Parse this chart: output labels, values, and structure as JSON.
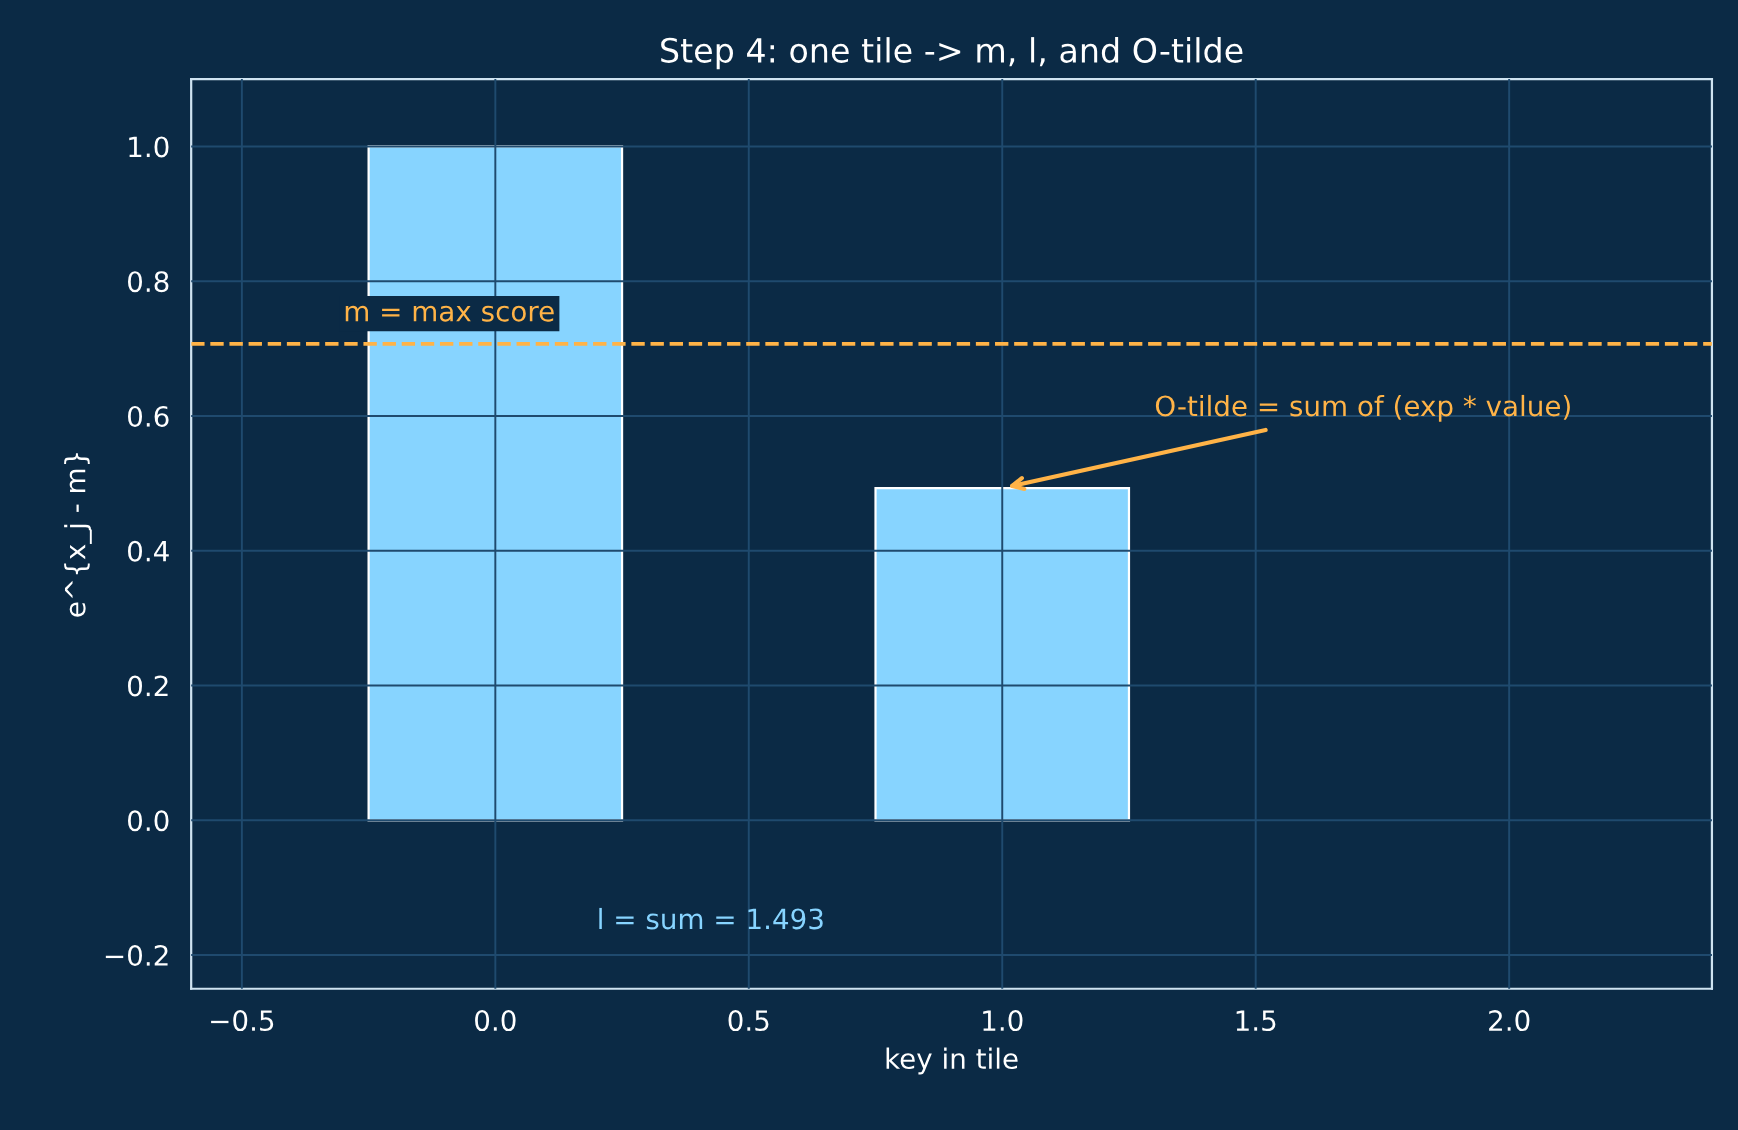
{
  "chart_data": {
    "type": "bar",
    "title": "Step 4: one tile -> m, l, and O-tilde",
    "xlabel": "key in tile",
    "ylabel": "e^{x_j - m}",
    "x": [
      0,
      1
    ],
    "values": [
      1.0,
      0.493
    ],
    "color": "#87d4ff",
    "xlim": [
      -0.6,
      2.4
    ],
    "ylim": [
      -0.25,
      1.1
    ],
    "xticks": [
      {
        "value": -0.5,
        "label": "−0.5"
      },
      {
        "value": 0,
        "label": "0.0"
      },
      0.5,
      {
        "value": 1,
        "label": "1.0"
      },
      1.5,
      {
        "value": 2,
        "label": "2.0"
      }
    ],
    "yticks": [
      {
        "value": -0.2,
        "label": "−0.2"
      },
      {
        "value": 0,
        "label": "0.0"
      },
      0.2,
      0.4,
      0.6,
      0.8,
      {
        "value": 1,
        "label": "1.0"
      }
    ],
    "ref_lines": [
      {
        "axis": "y",
        "value": 0.707,
        "label": "m = max score",
        "color": "#ffb347",
        "line_style": "dashed"
      }
    ],
    "annotations": [
      {
        "text": "O-tilde = sum of (exp * value)",
        "x": 1.0,
        "y": 0.493
      },
      "l = sum = 1.493"
    ],
    "grid": true
  }
}
